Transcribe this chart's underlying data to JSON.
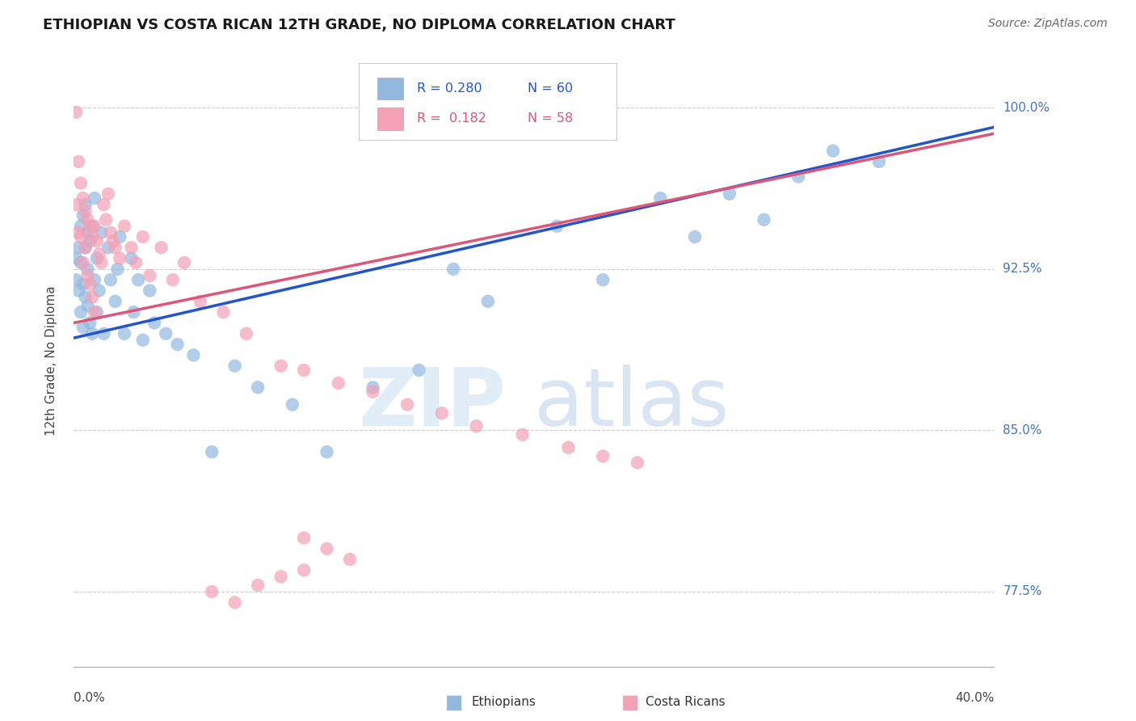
{
  "title": "ETHIOPIAN VS COSTA RICAN 12TH GRADE, NO DIPLOMA CORRELATION CHART",
  "source": "Source: ZipAtlas.com",
  "ylabel": "12th Grade, No Diploma",
  "legend_r_blue": "R = 0.280",
  "legend_n_blue": "N = 60",
  "legend_r_pink": "R =  0.182",
  "legend_n_pink": "N = 58",
  "blue_color": "#92b8e0",
  "pink_color": "#f4a0b5",
  "blue_line_color": "#2255cc",
  "pink_line_color": "#dd5577",
  "watermark_zip": "ZIP",
  "watermark_atlas": "atlas",
  "xmin": 0.0,
  "xmax": 0.4,
  "ymin": 0.74,
  "ymax": 1.025,
  "ytick_values": [
    0.775,
    0.85,
    0.925,
    1.0
  ],
  "ytick_labels": [
    "77.5%",
    "85.0%",
    "92.5%",
    "100.0%"
  ],
  "blue_x": [
    0.001,
    0.001,
    0.002,
    0.002,
    0.003,
    0.003,
    0.003,
    0.004,
    0.004,
    0.004,
    0.005,
    0.005,
    0.005,
    0.006,
    0.006,
    0.006,
    0.007,
    0.007,
    0.008,
    0.008,
    0.009,
    0.009,
    0.01,
    0.01,
    0.011,
    0.012,
    0.013,
    0.015,
    0.016,
    0.018,
    0.019,
    0.02,
    0.022,
    0.025,
    0.026,
    0.028,
    0.03,
    0.033,
    0.035,
    0.04,
    0.045,
    0.052,
    0.06,
    0.07,
    0.08,
    0.095,
    0.11,
    0.13,
    0.15,
    0.165,
    0.18,
    0.21,
    0.23,
    0.255,
    0.27,
    0.285,
    0.3,
    0.315,
    0.33,
    0.35
  ],
  "blue_y": [
    0.93,
    0.92,
    0.935,
    0.915,
    0.945,
    0.928,
    0.905,
    0.95,
    0.918,
    0.898,
    0.955,
    0.935,
    0.912,
    0.942,
    0.925,
    0.908,
    0.938,
    0.9,
    0.945,
    0.895,
    0.92,
    0.958,
    0.93,
    0.905,
    0.915,
    0.942,
    0.895,
    0.935,
    0.92,
    0.91,
    0.925,
    0.94,
    0.895,
    0.93,
    0.905,
    0.92,
    0.892,
    0.915,
    0.9,
    0.895,
    0.89,
    0.885,
    0.84,
    0.88,
    0.87,
    0.862,
    0.84,
    0.87,
    0.878,
    0.925,
    0.91,
    0.945,
    0.92,
    0.958,
    0.94,
    0.96,
    0.948,
    0.968,
    0.98,
    0.975
  ],
  "pink_x": [
    0.001,
    0.001,
    0.002,
    0.002,
    0.003,
    0.003,
    0.004,
    0.004,
    0.005,
    0.005,
    0.006,
    0.006,
    0.007,
    0.007,
    0.008,
    0.008,
    0.009,
    0.009,
    0.01,
    0.011,
    0.012,
    0.013,
    0.014,
    0.015,
    0.016,
    0.017,
    0.018,
    0.02,
    0.022,
    0.025,
    0.027,
    0.03,
    0.033,
    0.038,
    0.043,
    0.048,
    0.055,
    0.065,
    0.075,
    0.09,
    0.1,
    0.115,
    0.13,
    0.145,
    0.16,
    0.175,
    0.195,
    0.215,
    0.23,
    0.245,
    0.1,
    0.11,
    0.12,
    0.06,
    0.07,
    0.08,
    0.09,
    0.1
  ],
  "pink_y": [
    0.998,
    0.955,
    0.975,
    0.942,
    0.965,
    0.94,
    0.958,
    0.928,
    0.952,
    0.935,
    0.948,
    0.922,
    0.945,
    0.918,
    0.94,
    0.912,
    0.945,
    0.905,
    0.938,
    0.932,
    0.928,
    0.955,
    0.948,
    0.96,
    0.942,
    0.938,
    0.935,
    0.93,
    0.945,
    0.935,
    0.928,
    0.94,
    0.922,
    0.935,
    0.92,
    0.928,
    0.91,
    0.905,
    0.895,
    0.88,
    0.878,
    0.872,
    0.868,
    0.862,
    0.858,
    0.852,
    0.848,
    0.842,
    0.838,
    0.835,
    0.8,
    0.795,
    0.79,
    0.775,
    0.77,
    0.778,
    0.782,
    0.785
  ]
}
